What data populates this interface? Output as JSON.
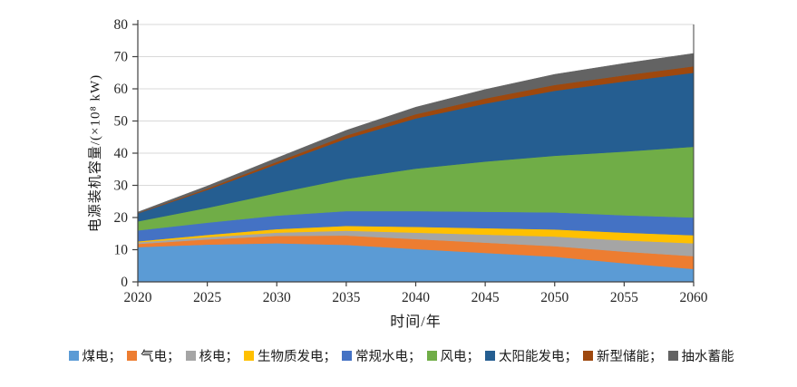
{
  "chart_data": {
    "type": "area",
    "stacked": true,
    "title": "",
    "xlabel": "时间/年",
    "ylabel": "电源装机容量/(×10⁸ kW)",
    "xlim": [
      2020,
      2060
    ],
    "ylim": [
      0,
      80
    ],
    "grid": true,
    "legend_position": "bottom",
    "legend_separator": "；",
    "x": [
      2020,
      2025,
      2030,
      2035,
      2040,
      2045,
      2050,
      2055,
      2060
    ],
    "xticks": [
      "2020",
      "2025",
      "2030",
      "2035",
      "2040",
      "2045",
      "2050",
      "2055",
      "2060"
    ],
    "yticks": [
      0,
      10,
      20,
      30,
      40,
      50,
      60,
      70,
      80
    ],
    "series": [
      {
        "name": "煤电",
        "key": "coal",
        "color": "#5B9BD5",
        "values": [
          10.8,
          11.6,
          12.0,
          11.5,
          10.2,
          9.0,
          7.8,
          5.8,
          4.0
        ]
      },
      {
        "name": "气电",
        "key": "gas",
        "color": "#ED7D31",
        "values": [
          1.0,
          1.6,
          2.3,
          2.9,
          3.1,
          3.2,
          3.3,
          3.6,
          4.0
        ]
      },
      {
        "name": "核电",
        "key": "nuclear",
        "color": "#A5A5A5",
        "values": [
          0.5,
          0.7,
          1.0,
          1.5,
          2.0,
          2.5,
          3.0,
          3.5,
          4.0
        ]
      },
      {
        "name": "生物质发电",
        "key": "biomass",
        "color": "#FFC000",
        "values": [
          0.3,
          0.7,
          1.1,
          1.5,
          1.8,
          2.0,
          2.2,
          2.4,
          2.5
        ]
      },
      {
        "name": "常规水电",
        "key": "hydro",
        "color": "#4472C4",
        "values": [
          3.4,
          3.8,
          4.2,
          4.6,
          4.9,
          5.1,
          5.3,
          5.4,
          5.5
        ]
      },
      {
        "name": "风电",
        "key": "wind",
        "color": "#70AD47",
        "values": [
          2.8,
          4.6,
          7.0,
          10.0,
          13.2,
          15.6,
          17.6,
          19.8,
          22.0
        ]
      },
      {
        "name": "太阳能发电",
        "key": "solar",
        "color": "#255E91",
        "values": [
          2.5,
          5.6,
          9.0,
          12.5,
          15.6,
          18.0,
          20.2,
          21.8,
          23.0
        ]
      },
      {
        "name": "新型储能",
        "key": "storage",
        "color": "#9E480E",
        "values": [
          0.1,
          0.4,
          0.7,
          1.0,
          1.3,
          1.6,
          1.8,
          1.9,
          2.0
        ]
      },
      {
        "name": "抽水蓄能",
        "key": "pumped",
        "color": "#636363",
        "values": [
          0.3,
          0.8,
          1.2,
          1.6,
          2.2,
          2.8,
          3.3,
          3.7,
          4.0
        ]
      }
    ],
    "style": {
      "gridline_color": "#D9D9D9",
      "axis_color": "#404040",
      "tick_label_color": "#262626"
    }
  }
}
